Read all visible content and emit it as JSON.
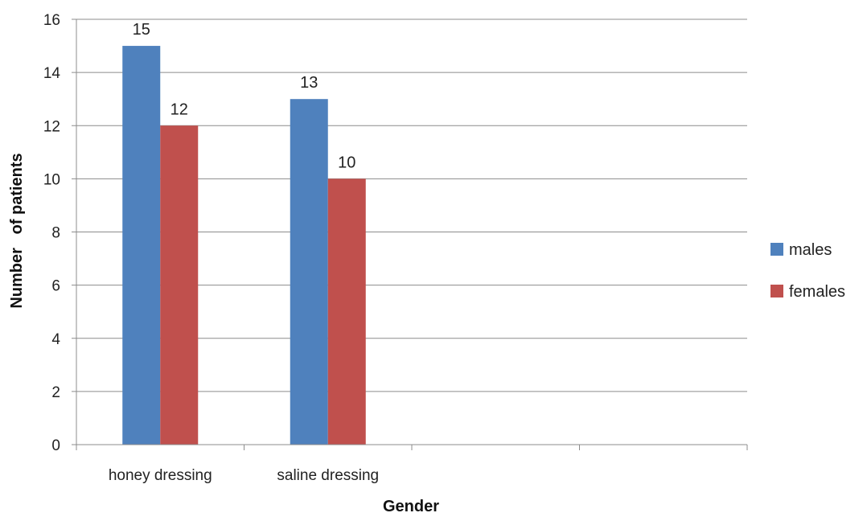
{
  "chart_data": {
    "type": "bar",
    "categories": [
      "honey dressing",
      "saline dressing",
      "",
      ""
    ],
    "series": [
      {
        "name": "males",
        "values": [
          15,
          13,
          null,
          null
        ],
        "color": "#4F81BD"
      },
      {
        "name": "females",
        "values": [
          12,
          10,
          null,
          null
        ],
        "color": "#C0504D"
      }
    ],
    "title": "",
    "xlabel": "Gender",
    "ylabel": "Number   of patients",
    "ylim": [
      0,
      16
    ],
    "yticks": [
      0,
      2,
      4,
      6,
      8,
      10,
      12,
      14,
      16
    ],
    "grid": true,
    "legend": "right",
    "data_labels": true
  }
}
